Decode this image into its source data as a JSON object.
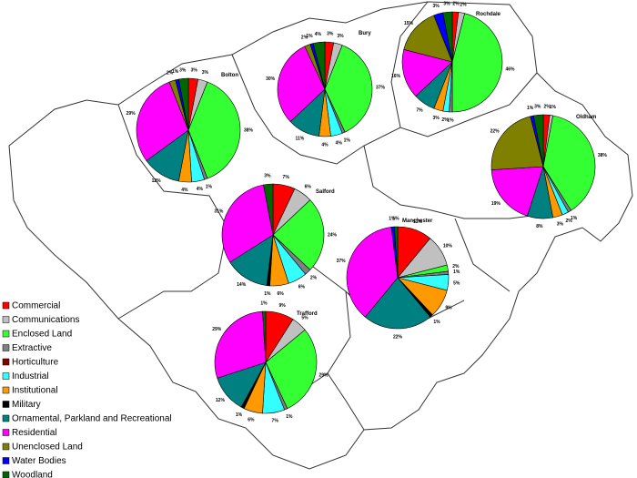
{
  "categories": [
    "Commercial",
    "Communications",
    "Enclosed Land",
    "Extractive",
    "Horticulture",
    "Industrial",
    "Institutional",
    "Military",
    "Ornamental, Parkland and Recreational",
    "Residential",
    "Unenclosed Land",
    "Water Bodies",
    "Woodland"
  ],
  "colors": [
    "#ff0000",
    "#c0c0c0",
    "#33ff33",
    "#808080",
    "#800000",
    "#33ffff",
    "#ff9900",
    "#000000",
    "#008080",
    "#ff00ff",
    "#808000",
    "#0000ff",
    "#006600"
  ],
  "pies": [
    {
      "label": "Bolton",
      "values": [
        3,
        3,
        38,
        1,
        0,
        4,
        4,
        0,
        12,
        29,
        2,
        1,
        3
      ],
      "value_labels": [
        "3%",
        "3%",
        "38%",
        "1%",
        null,
        "4%",
        "4%",
        null,
        "12%",
        "29%",
        "2%",
        "1%",
        "3%"
      ]
    },
    {
      "label": "Bury",
      "values": [
        3,
        3,
        37,
        1,
        0,
        4,
        4,
        0,
        11,
        30,
        2,
        1,
        4
      ],
      "value_labels": [
        "3%",
        "3%",
        "37%",
        "1%",
        null,
        "4%",
        "4%",
        null,
        "11%",
        "30%",
        "2%",
        "1%",
        "4%"
      ]
    },
    {
      "label": "Rochdale",
      "values": [
        2,
        2,
        46,
        1,
        0,
        2,
        3,
        0,
        7,
        16,
        15,
        3,
        3
      ],
      "value_labels": [
        "2%",
        "2%",
        "46%",
        "1%",
        null,
        "2%",
        "3%",
        null,
        "7%",
        "16%",
        "15%",
        "3%",
        "3%"
      ]
    },
    {
      "label": "Oldham",
      "values": [
        2,
        1,
        38,
        1,
        0,
        2,
        3,
        0,
        8,
        19,
        22,
        1,
        3
      ],
      "value_labels": [
        "2%",
        "1%",
        "38%",
        "1%",
        null,
        "2%",
        "3%",
        null,
        "8%",
        "19%",
        "22%",
        "1%",
        "3%"
      ]
    },
    {
      "label": "Salford",
      "values": [
        7,
        6,
        24,
        2,
        0,
        6,
        6,
        1,
        14,
        31,
        0,
        0,
        3
      ],
      "value_labels": [
        "7%",
        "6%",
        "24%",
        "2%",
        null,
        "6%",
        "6%",
        "1%",
        "14%",
        "31%",
        null,
        null,
        "3%"
      ]
    },
    {
      "label": "Manchester",
      "values": [
        11,
        10,
        2,
        1,
        0,
        5,
        9,
        1,
        22,
        37,
        0,
        1,
        1
      ],
      "value_labels": [
        "11%",
        "10%",
        "2%",
        "1%",
        null,
        "5%",
        "9%",
        "1%",
        "22%",
        "37%",
        null,
        "1%",
        "1%"
      ]
    },
    {
      "label": "Trafford",
      "values": [
        9,
        5,
        29,
        1,
        0,
        7,
        6,
        1,
        12,
        29,
        0,
        0,
        1
      ],
      "value_labels": [
        "9%",
        "5%",
        "29%",
        "1%",
        null,
        "7%",
        "6%",
        "1%",
        "12%",
        "29%",
        null,
        null,
        "1%"
      ]
    }
  ]
}
